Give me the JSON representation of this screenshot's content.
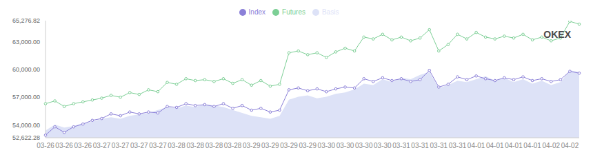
{
  "chart_data": {
    "type": "line",
    "annotation": "OKEX",
    "categories": [
      "03-26",
      null,
      "03-26",
      null,
      "03-26",
      null,
      "03-27",
      null,
      "03-27",
      null,
      "03-27",
      null,
      "03-27",
      null,
      "03-28",
      null,
      "03-28",
      null,
      "03-28",
      null,
      "03-28",
      null,
      "03-29",
      null,
      "03-29",
      null,
      "03-29",
      null,
      "03-29",
      null,
      "03-30",
      null,
      "03-30",
      null,
      "03-30",
      null,
      "03-30",
      null,
      "03-31",
      null,
      "03-31",
      null,
      "03-31",
      null,
      "03-31",
      null,
      "04-01",
      null,
      "04-01",
      null,
      "04-01",
      null,
      "04-01",
      null,
      "04-02",
      null,
      "04-02",
      null
    ],
    "series": [
      {
        "name": "Index",
        "type": "line",
        "marker": "circle",
        "color": "#8b80d8",
        "values": [
          52900,
          53800,
          53200,
          53800,
          54100,
          54500,
          54700,
          55200,
          55000,
          55400,
          55200,
          55400,
          55300,
          56000,
          55900,
          56300,
          56100,
          56200,
          56000,
          56300,
          55800,
          56100,
          55600,
          55800,
          55400,
          55600,
          57800,
          58000,
          57700,
          57900,
          57600,
          57900,
          58100,
          58000,
          59000,
          58700,
          59100,
          58800,
          59000,
          58700,
          58900,
          59900,
          58100,
          58400,
          59200,
          58900,
          59300,
          59000,
          58800,
          59100,
          58900,
          59200,
          58800,
          59000,
          58700,
          58900,
          59800,
          59600
        ]
      },
      {
        "name": "Futures",
        "type": "line",
        "marker": "circle",
        "color": "#7ccf95",
        "values": [
          56300,
          56600,
          56000,
          56300,
          56500,
          56700,
          56900,
          57200,
          57000,
          57500,
          57300,
          57800,
          57600,
          58600,
          58400,
          59000,
          58800,
          58900,
          58700,
          59000,
          58500,
          58900,
          58300,
          58800,
          58200,
          58400,
          61800,
          62000,
          61600,
          61800,
          61300,
          61900,
          62300,
          62000,
          63500,
          63300,
          63800,
          63200,
          63500,
          63100,
          63400,
          64300,
          62000,
          62700,
          63800,
          63300,
          64000,
          63500,
          63300,
          63600,
          63400,
          63800,
          63200,
          63500,
          63100,
          63400,
          65200,
          64900
        ]
      },
      {
        "name": "Basis",
        "type": "area",
        "axis": "y2",
        "color": "#dde2f7",
        "values": [
          500,
          900,
          700,
          800,
          1000,
          1100,
          1300,
          1400,
          1300,
          1500,
          1600,
          1700,
          1900,
          2100,
          2000,
          2200,
          2100,
          2300,
          2200,
          2100,
          1900,
          1700,
          1500,
          1400,
          1300,
          1500,
          2600,
          2800,
          2900,
          2700,
          2800,
          3000,
          3100,
          3300,
          3700,
          3600,
          4000,
          3800,
          4100,
          4000,
          4300,
          4500,
          3400,
          3600,
          3900,
          3800,
          4000,
          4200,
          3900,
          4100,
          3800,
          4000,
          3700,
          3900,
          3600,
          3800,
          4600,
          4500
        ]
      }
    ],
    "ylim": [
      52622.28,
      65276.82
    ],
    "yticks": [
      {
        "value": 52622.28,
        "label": "52,622.28"
      },
      {
        "value": 54000,
        "label": "54,000.00"
      },
      {
        "value": 57000,
        "label": "57,000.00"
      },
      {
        "value": 60000,
        "label": "60,000.00"
      },
      {
        "value": 63000,
        "label": "63,000.00"
      },
      {
        "value": 65276.82,
        "label": "65,276.82"
      }
    ],
    "y2lim": [
      0,
      8000
    ],
    "grid": false,
    "legend": "top",
    "tick_labels": "y"
  }
}
